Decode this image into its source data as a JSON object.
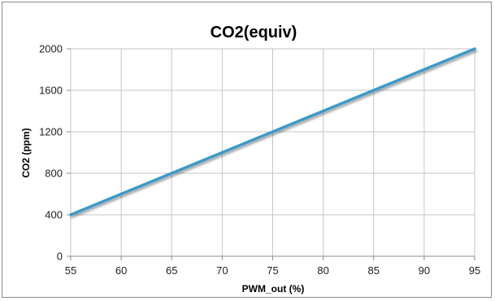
{
  "chart_data": {
    "type": "line",
    "title": "CO2(equiv)",
    "xlabel": "PWM_out (%)",
    "ylabel": "CO2 (ppm)",
    "xlim": [
      55,
      95
    ],
    "ylim": [
      0,
      2000
    ],
    "xticks": [
      55,
      60,
      65,
      70,
      75,
      80,
      85,
      90,
      95
    ],
    "yticks": [
      0,
      400,
      800,
      1200,
      1600,
      2000
    ],
    "grid": true,
    "legend": "none",
    "series": [
      {
        "color": "#3a9ac9",
        "x": [
          55,
          95
        ],
        "y": [
          400,
          2000
        ]
      }
    ]
  }
}
